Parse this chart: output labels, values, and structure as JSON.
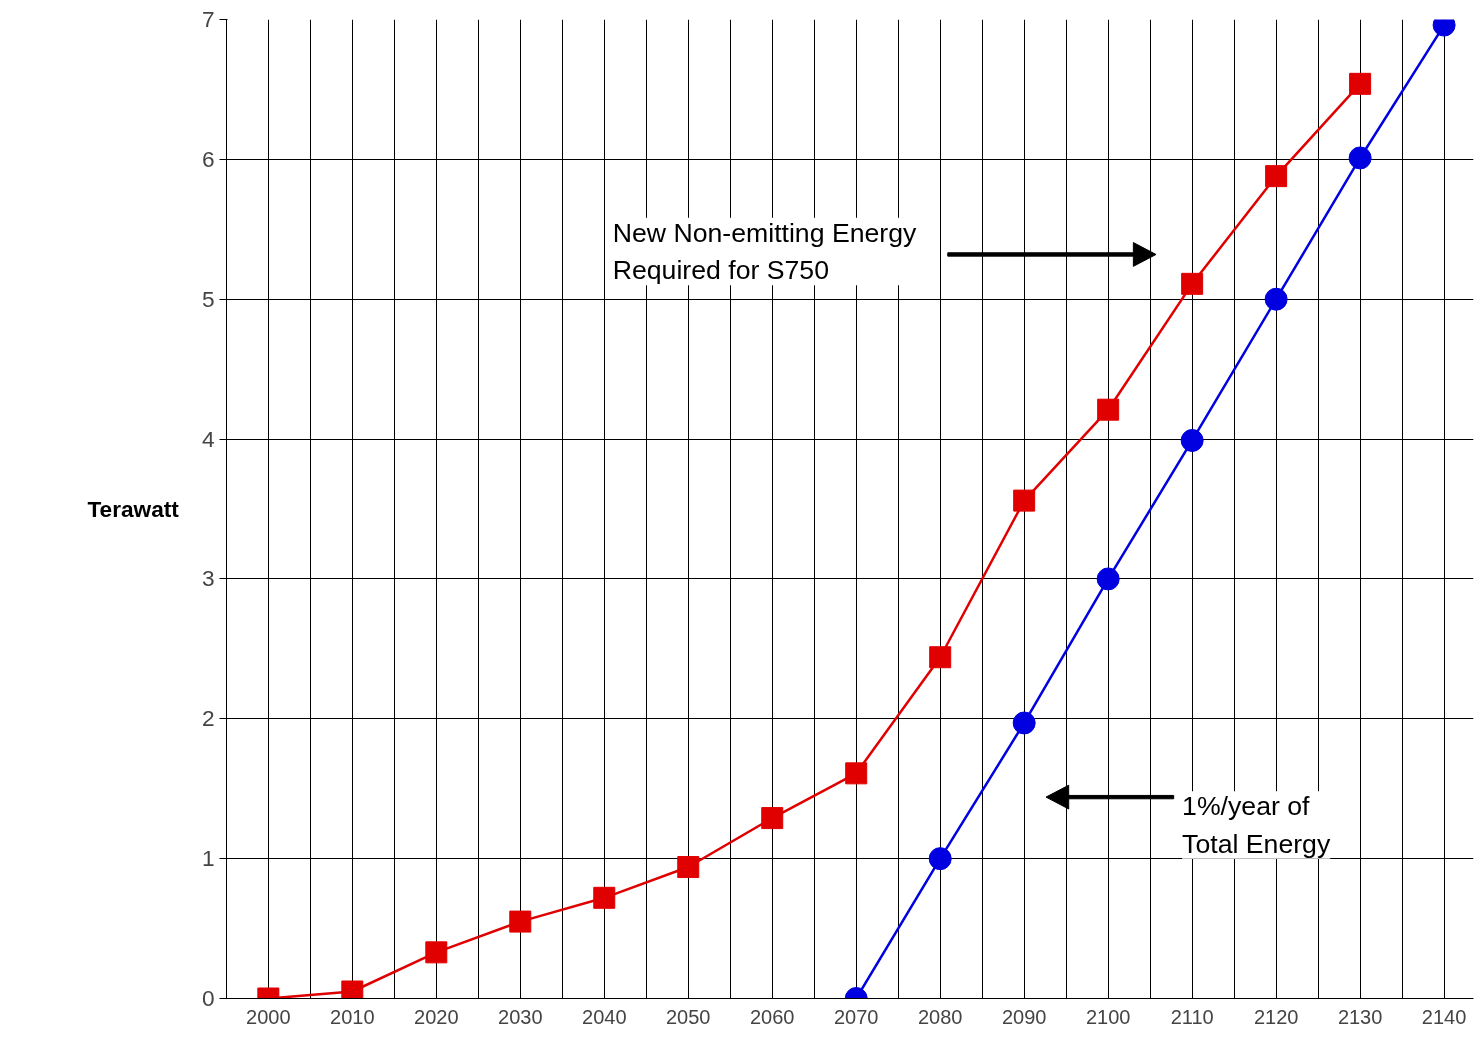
{
  "chart_data": {
    "type": "line",
    "ylabel": "Terawatt",
    "categories": [
      "2000",
      "2010",
      "2020",
      "2030",
      "2040",
      "2050",
      "2060",
      "2070",
      "2080",
      "2090",
      "2100",
      "2110",
      "2120",
      "2130",
      "2140"
    ],
    "series": [
      {
        "color": "#e00000",
        "marker": "square",
        "values": [
          0,
          0.05,
          0.33,
          0.55,
          0.72,
          0.94,
          1.29,
          1.61,
          2.44,
          3.56,
          4.21,
          5.11,
          5.88,
          6.54,
          null
        ]
      },
      {
        "color": "#0000e0",
        "marker": "circle",
        "values": [
          null,
          null,
          null,
          null,
          null,
          null,
          null,
          0,
          1,
          1.97,
          3,
          3.99,
          5,
          6.01,
          6.96
        ]
      }
    ],
    "ylim": [
      0,
      7
    ],
    "yticks": [
      0,
      1,
      2,
      3,
      4,
      5,
      6,
      7
    ],
    "grid": true,
    "line_style": "solid",
    "annotations": [
      "New Non-emitting Energy\nRequired for S750",
      "1%/year of\nTotal Energy"
    ]
  }
}
